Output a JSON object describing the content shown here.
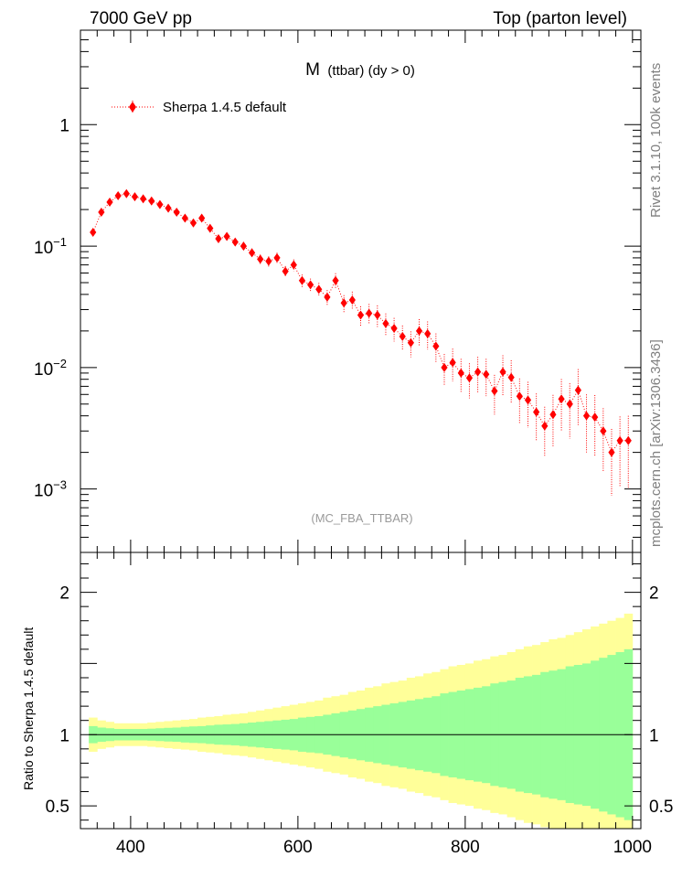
{
  "header": {
    "left_title": "7000 GeV pp",
    "right_title": "Top (parton level)"
  },
  "side_labels": {
    "rivet": "Rivet 3.1.10,  100k events",
    "mcplots": "mcplots.cern.ch [arXiv:1306.3436]"
  },
  "chart_data": [
    {
      "type": "scatter",
      "panel": "main",
      "title_main": "M",
      "title_sub": "(ttbar) (dy > 0)",
      "analysis_label": "(MC_FBA_TTBAR)",
      "yscale": "log",
      "xlim": [
        340,
        1010
      ],
      "ylim": [
        0.0003,
        6
      ],
      "y_ticks": [
        {
          "value": 1,
          "label": "1"
        },
        {
          "value": 0.1,
          "base": "10",
          "exp": "−1"
        },
        {
          "value": 0.01,
          "base": "10",
          "exp": "−2"
        },
        {
          "value": 0.001,
          "base": "10",
          "exp": "−3"
        }
      ],
      "legend": {
        "label": "Sherpa 1.4.5 default",
        "color": "#ff0000",
        "position": "top-left"
      },
      "series": [
        {
          "name": "Sherpa 1.4.5 default",
          "color": "#ff0000",
          "x": [
            355,
            365,
            375,
            385,
            395,
            405,
            415,
            425,
            435,
            445,
            455,
            465,
            475,
            485,
            495,
            505,
            515,
            525,
            535,
            545,
            555,
            565,
            575,
            585,
            595,
            605,
            615,
            625,
            635,
            645,
            655,
            665,
            675,
            685,
            695,
            705,
            715,
            725,
            735,
            745,
            755,
            765,
            775,
            785,
            795,
            805,
            815,
            825,
            835,
            845,
            855,
            865,
            875,
            885,
            895,
            905,
            915,
            925,
            935,
            945,
            955,
            965,
            975,
            985,
            995
          ],
          "y": [
            0.13,
            0.19,
            0.23,
            0.26,
            0.27,
            0.255,
            0.245,
            0.235,
            0.22,
            0.205,
            0.19,
            0.17,
            0.155,
            0.17,
            0.14,
            0.115,
            0.12,
            0.108,
            0.1,
            0.088,
            0.078,
            0.075,
            0.08,
            0.062,
            0.07,
            0.052,
            0.048,
            0.044,
            0.038,
            0.052,
            0.034,
            0.036,
            0.027,
            0.028,
            0.027,
            0.023,
            0.021,
            0.018,
            0.016,
            0.02,
            0.019,
            0.015,
            0.01,
            0.011,
            0.009,
            0.0082,
            0.0092,
            0.0088,
            0.0064,
            0.0092,
            0.0083,
            0.0058,
            0.0054,
            0.0043,
            0.0033,
            0.0041,
            0.0055,
            0.005,
            0.0065,
            0.004,
            0.0039,
            0.003,
            0.002,
            0.0025,
            0.0025
          ],
          "yerr_rel": [
            0.06,
            0.05,
            0.045,
            0.04,
            0.04,
            0.04,
            0.04,
            0.042,
            0.045,
            0.048,
            0.05,
            0.055,
            0.058,
            0.06,
            0.065,
            0.07,
            0.072,
            0.075,
            0.08,
            0.085,
            0.09,
            0.095,
            0.1,
            0.105,
            0.11,
            0.12,
            0.125,
            0.13,
            0.14,
            0.15,
            0.16,
            0.17,
            0.18,
            0.19,
            0.2,
            0.21,
            0.22,
            0.23,
            0.24,
            0.25,
            0.26,
            0.27,
            0.29,
            0.3,
            0.31,
            0.32,
            0.33,
            0.34,
            0.36,
            0.37,
            0.38,
            0.4,
            0.41,
            0.42,
            0.44,
            0.45,
            0.46,
            0.48,
            0.49,
            0.5,
            0.52,
            0.54,
            0.56,
            0.58,
            0.6
          ]
        }
      ]
    },
    {
      "type": "area",
      "panel": "ratio",
      "ylabel": "Ratio to Sherpa 1.4.5 default",
      "xlim": [
        340,
        1010
      ],
      "ylim": [
        0.34,
        2.28
      ],
      "reference_line": 1,
      "x_ticks": [
        400,
        600,
        800,
        1000
      ],
      "y_ticks": [
        0.5,
        1,
        2
      ],
      "bin_edges": [
        350,
        360,
        370,
        380,
        390,
        400,
        410,
        420,
        430,
        440,
        450,
        460,
        470,
        480,
        490,
        500,
        510,
        520,
        530,
        540,
        550,
        560,
        570,
        580,
        590,
        600,
        610,
        620,
        630,
        640,
        650,
        660,
        670,
        680,
        690,
        700,
        710,
        720,
        730,
        740,
        750,
        760,
        770,
        780,
        790,
        800,
        810,
        820,
        830,
        840,
        850,
        860,
        870,
        880,
        890,
        900,
        910,
        920,
        930,
        940,
        950,
        960,
        970,
        980,
        990,
        1000
      ],
      "inner_band_halfwidth": [
        0.06,
        0.05,
        0.045,
        0.04,
        0.04,
        0.04,
        0.04,
        0.042,
        0.045,
        0.048,
        0.05,
        0.055,
        0.058,
        0.06,
        0.065,
        0.07,
        0.072,
        0.075,
        0.08,
        0.085,
        0.09,
        0.095,
        0.1,
        0.105,
        0.11,
        0.12,
        0.125,
        0.13,
        0.14,
        0.15,
        0.16,
        0.17,
        0.18,
        0.19,
        0.2,
        0.21,
        0.22,
        0.23,
        0.24,
        0.25,
        0.26,
        0.27,
        0.29,
        0.3,
        0.31,
        0.32,
        0.33,
        0.34,
        0.36,
        0.37,
        0.38,
        0.4,
        0.41,
        0.42,
        0.44,
        0.45,
        0.46,
        0.48,
        0.49,
        0.5,
        0.52,
        0.54,
        0.56,
        0.58,
        0.6
      ],
      "outer_band_halfwidth": [
        0.12,
        0.1,
        0.09,
        0.08,
        0.08,
        0.08,
        0.08,
        0.085,
        0.09,
        0.095,
        0.1,
        0.105,
        0.11,
        0.12,
        0.125,
        0.13,
        0.14,
        0.145,
        0.15,
        0.16,
        0.17,
        0.18,
        0.19,
        0.2,
        0.21,
        0.22,
        0.23,
        0.24,
        0.26,
        0.27,
        0.28,
        0.3,
        0.31,
        0.33,
        0.34,
        0.36,
        0.37,
        0.38,
        0.4,
        0.41,
        0.43,
        0.44,
        0.46,
        0.48,
        0.49,
        0.5,
        0.52,
        0.53,
        0.55,
        0.56,
        0.58,
        0.6,
        0.62,
        0.63,
        0.65,
        0.67,
        0.68,
        0.7,
        0.72,
        0.74,
        0.76,
        0.78,
        0.8,
        0.82,
        0.85
      ],
      "inner_color": "#99ff99",
      "outer_color": "#ffff99"
    }
  ]
}
